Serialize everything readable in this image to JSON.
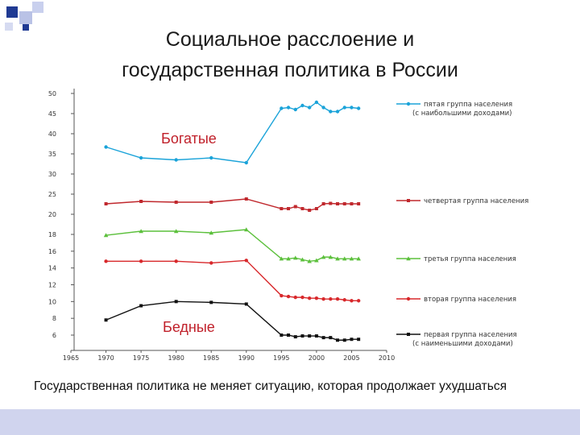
{
  "slide": {
    "title_line1": "Социальное расслоение и",
    "title_line2": "государственная политика в России",
    "caption": "Государственная политика не меняет ситуацию, которая продолжает ухудшаться",
    "colors": {
      "bottom_bar": "#d0d4ee",
      "deco_square_dark": "#1f3a93",
      "deco_square_light": "#b9c2e6"
    }
  },
  "chart_data": {
    "type": "line",
    "title": "",
    "xlabel": "",
    "ylabel": "",
    "x_ticks": [
      1965,
      1970,
      1975,
      1980,
      1985,
      1990,
      1995,
      2000,
      2005,
      2010
    ],
    "y_ticks_upper": [
      20,
      25,
      30,
      35,
      40,
      45,
      50
    ],
    "y_ticks_lower": [
      6,
      8,
      10,
      12,
      14,
      16,
      18
    ],
    "y_axis_note": "broken axis: upper segment 20–50 step 5, lower segment 6–18 step 2",
    "annotations": {
      "rich": "Богатые",
      "poor": "Бедные"
    },
    "legend_placement": "right",
    "series": [
      {
        "name_line1": "пятая группа населения",
        "name_line2": "(с наибольшими доходами)",
        "color": "#1aa3d9",
        "marker": "circle",
        "x": [
          1970,
          1975,
          1980,
          1985,
          1990,
          1995,
          1996,
          1997,
          1998,
          1999,
          2000,
          2001,
          2002,
          2003,
          2004,
          2005,
          2006
        ],
        "y": [
          36.7,
          34.0,
          33.5,
          34.0,
          32.8,
          46.3,
          46.5,
          46.0,
          47.0,
          46.5,
          47.8,
          46.5,
          45.5,
          45.5,
          46.5,
          46.5,
          46.3
        ]
      },
      {
        "name_line1": "четвертая группа населения",
        "name_line2": "",
        "color": "#c0282d",
        "marker": "square",
        "x": [
          1970,
          1975,
          1980,
          1985,
          1990,
          1995,
          1996,
          1997,
          1998,
          1999,
          2000,
          2001,
          2002,
          2003,
          2004,
          2005,
          2006
        ],
        "y": [
          22.6,
          23.2,
          23.0,
          23.0,
          23.8,
          21.4,
          21.4,
          21.9,
          21.4,
          21.0,
          21.4,
          22.6,
          22.7,
          22.6,
          22.6,
          22.6,
          22.6
        ]
      },
      {
        "name_line1": "третья группа населения",
        "name_line2": "",
        "color": "#5cc03c",
        "marker": "triangle",
        "x": [
          1970,
          1975,
          1980,
          1985,
          1990,
          1995,
          1996,
          1997,
          1998,
          1999,
          2000,
          2001,
          2002,
          2003,
          2004,
          2005,
          2006
        ],
        "y": [
          17.9,
          18.4,
          18.4,
          18.2,
          18.6,
          15.1,
          15.1,
          15.2,
          15.0,
          14.8,
          14.9,
          15.3,
          15.3,
          15.1,
          15.1,
          15.1,
          15.1
        ]
      },
      {
        "name_line1": "вторая группа населения",
        "name_line2": "",
        "color": "#d8282b",
        "marker": "circle",
        "x": [
          1970,
          1975,
          1980,
          1985,
          1990,
          1995,
          1996,
          1997,
          1998,
          1999,
          2000,
          2001,
          2002,
          2003,
          2004,
          2005,
          2006
        ],
        "y": [
          14.8,
          14.8,
          14.8,
          14.6,
          14.9,
          10.7,
          10.6,
          10.5,
          10.5,
          10.4,
          10.4,
          10.3,
          10.3,
          10.3,
          10.2,
          10.1,
          10.1
        ]
      },
      {
        "name_line1": "первая группа населения",
        "name_line2": "(с наименьшими доходами)",
        "color": "#111111",
        "marker": "square",
        "x": [
          1970,
          1975,
          1980,
          1985,
          1990,
          1995,
          1996,
          1997,
          1998,
          1999,
          2000,
          2001,
          2002,
          2003,
          2004,
          2005,
          2006
        ],
        "y": [
          7.8,
          9.5,
          10.0,
          9.9,
          9.7,
          6.0,
          6.0,
          5.8,
          5.9,
          5.9,
          5.9,
          5.7,
          5.7,
          5.4,
          5.4,
          5.5,
          5.5
        ]
      }
    ]
  }
}
